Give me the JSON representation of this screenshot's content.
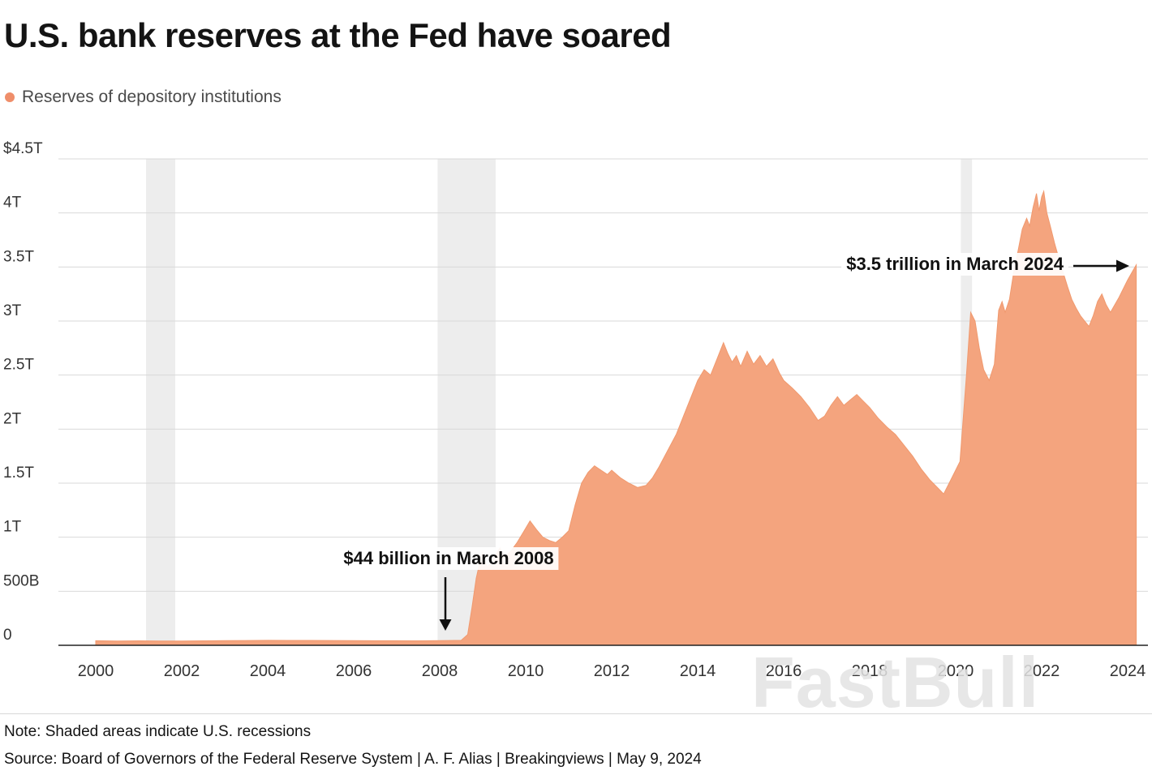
{
  "header": {
    "title": "U.S. bank reserves at the Fed have soared",
    "legend": {
      "label": "Reserves of depository institutions",
      "color": "#ef8e6a"
    }
  },
  "chart_data": {
    "type": "area",
    "title": "U.S. bank reserves at the Fed have soared",
    "series_name": "Reserves of depository institutions",
    "unit": "USD trillions",
    "xlabel": "",
    "ylabel": "",
    "xlim": [
      1999.2,
      2024.5
    ],
    "ylim": [
      0,
      4.5
    ],
    "grid": "horizontal",
    "legend_position": "top-left",
    "y_ticks": [
      {
        "label": "$4.5T",
        "value": 4.5
      },
      {
        "label": "4T",
        "value": 4.0
      },
      {
        "label": "3.5T",
        "value": 3.5
      },
      {
        "label": "3T",
        "value": 3.0
      },
      {
        "label": "2.5T",
        "value": 2.5
      },
      {
        "label": "2T",
        "value": 2.0
      },
      {
        "label": "1.5T",
        "value": 1.5
      },
      {
        "label": "1T",
        "value": 1.0
      },
      {
        "label": "500B",
        "value": 0.5
      },
      {
        "label": "0",
        "value": 0
      }
    ],
    "x_ticks": [
      2000,
      2002,
      2004,
      2006,
      2008,
      2010,
      2012,
      2014,
      2016,
      2018,
      2020,
      2022,
      2024
    ],
    "recession_bands": [
      [
        2001.17,
        2001.85
      ],
      [
        2007.95,
        2009.3
      ],
      [
        2020.12,
        2020.38
      ]
    ],
    "points": [
      [
        2000.0,
        0.042
      ],
      [
        2000.5,
        0.04
      ],
      [
        2001.0,
        0.041
      ],
      [
        2001.5,
        0.04
      ],
      [
        2002.0,
        0.04
      ],
      [
        2002.5,
        0.041
      ],
      [
        2003.0,
        0.043
      ],
      [
        2003.5,
        0.044
      ],
      [
        2004.0,
        0.046
      ],
      [
        2004.5,
        0.045
      ],
      [
        2005.0,
        0.045
      ],
      [
        2005.5,
        0.044
      ],
      [
        2006.0,
        0.043
      ],
      [
        2006.5,
        0.042
      ],
      [
        2007.0,
        0.042
      ],
      [
        2007.5,
        0.041
      ],
      [
        2008.0,
        0.043
      ],
      [
        2008.2,
        0.044
      ],
      [
        2008.5,
        0.046
      ],
      [
        2008.65,
        0.1
      ],
      [
        2008.75,
        0.35
      ],
      [
        2008.85,
        0.62
      ],
      [
        2008.95,
        0.8
      ],
      [
        2009.0,
        0.86
      ],
      [
        2009.1,
        0.72
      ],
      [
        2009.25,
        0.8
      ],
      [
        2009.4,
        0.9
      ],
      [
        2009.5,
        0.81
      ],
      [
        2009.65,
        0.87
      ],
      [
        2009.8,
        0.95
      ],
      [
        2009.95,
        1.05
      ],
      [
        2010.1,
        1.15
      ],
      [
        2010.25,
        1.07
      ],
      [
        2010.4,
        1.0
      ],
      [
        2010.55,
        0.97
      ],
      [
        2010.7,
        0.95
      ],
      [
        2010.85,
        1.0
      ],
      [
        2011.0,
        1.06
      ],
      [
        2011.15,
        1.3
      ],
      [
        2011.3,
        1.5
      ],
      [
        2011.45,
        1.6
      ],
      [
        2011.6,
        1.66
      ],
      [
        2011.75,
        1.62
      ],
      [
        2011.9,
        1.58
      ],
      [
        2012.0,
        1.62
      ],
      [
        2012.2,
        1.55
      ],
      [
        2012.4,
        1.5
      ],
      [
        2012.6,
        1.46
      ],
      [
        2012.8,
        1.48
      ],
      [
        2012.95,
        1.55
      ],
      [
        2013.1,
        1.65
      ],
      [
        2013.3,
        1.8
      ],
      [
        2013.5,
        1.95
      ],
      [
        2013.7,
        2.15
      ],
      [
        2013.9,
        2.35
      ],
      [
        2014.0,
        2.45
      ],
      [
        2014.15,
        2.55
      ],
      [
        2014.3,
        2.5
      ],
      [
        2014.45,
        2.65
      ],
      [
        2014.6,
        2.8
      ],
      [
        2014.7,
        2.7
      ],
      [
        2014.8,
        2.62
      ],
      [
        2014.9,
        2.68
      ],
      [
        2015.0,
        2.58
      ],
      [
        2015.15,
        2.72
      ],
      [
        2015.3,
        2.6
      ],
      [
        2015.45,
        2.68
      ],
      [
        2015.6,
        2.58
      ],
      [
        2015.75,
        2.65
      ],
      [
        2015.9,
        2.52
      ],
      [
        2016.0,
        2.45
      ],
      [
        2016.2,
        2.38
      ],
      [
        2016.4,
        2.3
      ],
      [
        2016.6,
        2.2
      ],
      [
        2016.8,
        2.08
      ],
      [
        2016.95,
        2.12
      ],
      [
        2017.1,
        2.22
      ],
      [
        2017.25,
        2.3
      ],
      [
        2017.4,
        2.22
      ],
      [
        2017.55,
        2.27
      ],
      [
        2017.7,
        2.32
      ],
      [
        2017.85,
        2.26
      ],
      [
        2018.0,
        2.2
      ],
      [
        2018.2,
        2.1
      ],
      [
        2018.4,
        2.02
      ],
      [
        2018.6,
        1.95
      ],
      [
        2018.8,
        1.85
      ],
      [
        2019.0,
        1.75
      ],
      [
        2019.2,
        1.63
      ],
      [
        2019.4,
        1.53
      ],
      [
        2019.6,
        1.45
      ],
      [
        2019.72,
        1.4
      ],
      [
        2019.85,
        1.5
      ],
      [
        2020.0,
        1.62
      ],
      [
        2020.1,
        1.7
      ],
      [
        2020.25,
        2.5
      ],
      [
        2020.35,
        3.08
      ],
      [
        2020.45,
        3.0
      ],
      [
        2020.55,
        2.75
      ],
      [
        2020.65,
        2.55
      ],
      [
        2020.78,
        2.45
      ],
      [
        2020.9,
        2.6
      ],
      [
        2021.0,
        3.1
      ],
      [
        2021.08,
        3.18
      ],
      [
        2021.15,
        3.08
      ],
      [
        2021.25,
        3.2
      ],
      [
        2021.35,
        3.45
      ],
      [
        2021.45,
        3.65
      ],
      [
        2021.55,
        3.85
      ],
      [
        2021.65,
        3.95
      ],
      [
        2021.72,
        3.88
      ],
      [
        2021.8,
        4.05
      ],
      [
        2021.88,
        4.18
      ],
      [
        2021.94,
        4.02
      ],
      [
        2022.0,
        4.15
      ],
      [
        2022.05,
        4.2
      ],
      [
        2022.12,
        4.0
      ],
      [
        2022.2,
        3.88
      ],
      [
        2022.3,
        3.72
      ],
      [
        2022.4,
        3.58
      ],
      [
        2022.5,
        3.45
      ],
      [
        2022.6,
        3.32
      ],
      [
        2022.7,
        3.2
      ],
      [
        2022.8,
        3.12
      ],
      [
        2022.9,
        3.05
      ],
      [
        2023.0,
        3.0
      ],
      [
        2023.1,
        2.95
      ],
      [
        2023.2,
        3.05
      ],
      [
        2023.3,
        3.18
      ],
      [
        2023.4,
        3.25
      ],
      [
        2023.5,
        3.15
      ],
      [
        2023.6,
        3.08
      ],
      [
        2023.7,
        3.15
      ],
      [
        2023.8,
        3.22
      ],
      [
        2023.9,
        3.3
      ],
      [
        2024.0,
        3.38
      ],
      [
        2024.1,
        3.45
      ],
      [
        2024.2,
        3.52
      ]
    ],
    "annotations": [
      {
        "text": "$44 billion in March 2008",
        "x": 2008.2,
        "y": 0.044,
        "arrow": "down"
      },
      {
        "text": "$3.5 trillion in March 2024",
        "x": 2024.2,
        "y": 3.5,
        "arrow": "right"
      }
    ],
    "colors": {
      "area": "#f4a47e",
      "area_stroke": "#f0996e",
      "band": "#ededed",
      "grid": "#d9d9d9",
      "axis": "#222222",
      "tick_text": "#333333"
    }
  },
  "footer": {
    "note": "Note: Shaded areas indicate U.S. recessions",
    "source": "Source: Board of Governors of the Federal Reserve System | A. F. Alias | Breakingviews | May 9, 2024"
  },
  "watermark": "FastBull"
}
